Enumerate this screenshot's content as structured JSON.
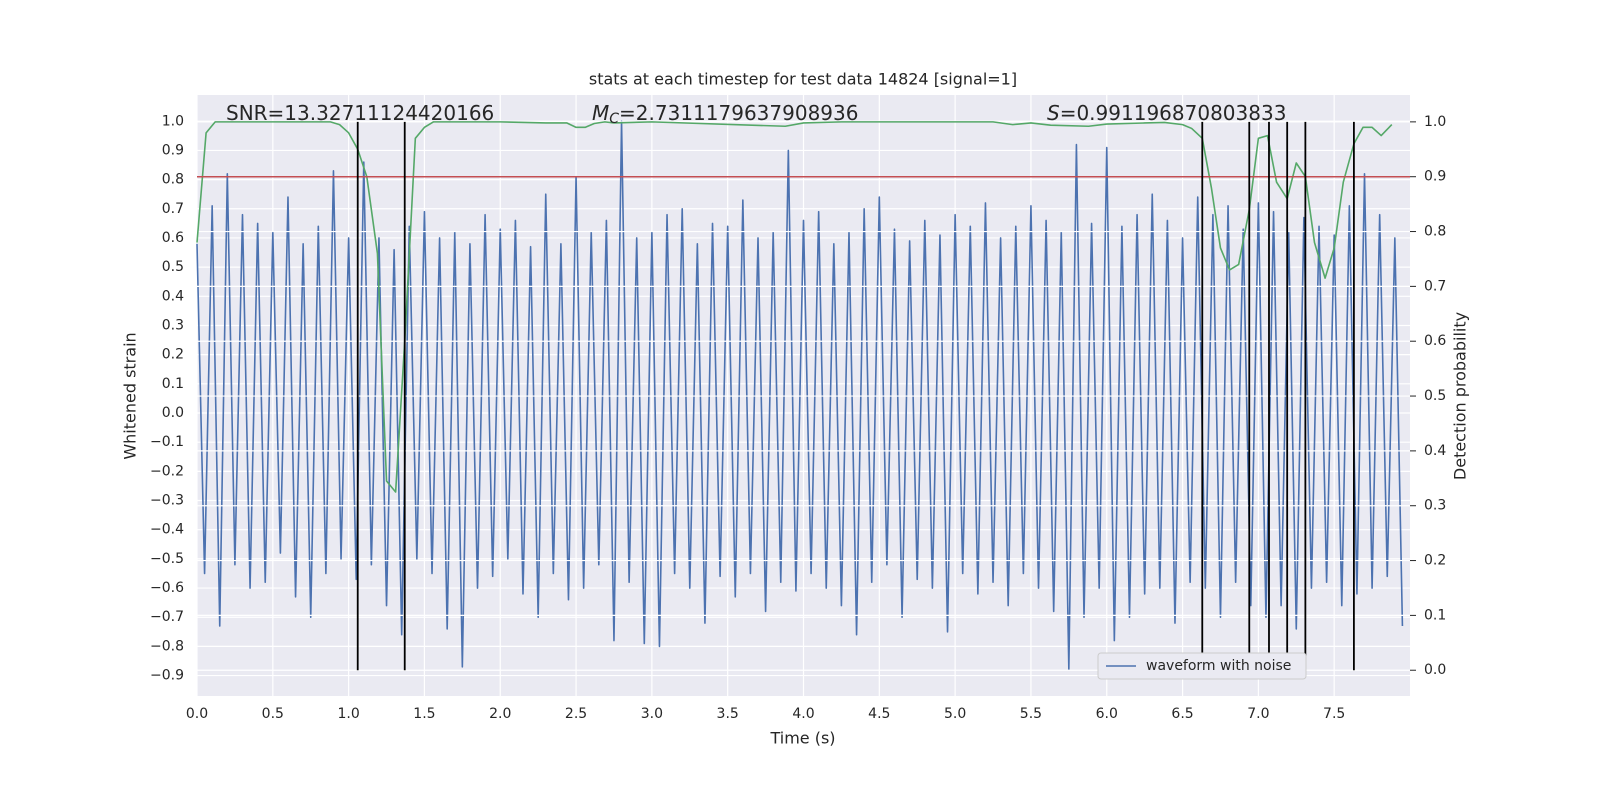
{
  "chart_data": {
    "type": "line",
    "title": "stats at each timestep for test data 14824 [signal=1]",
    "xlabel": "Time (s)",
    "ylabel": "Whitened strain",
    "y2label": "Detection probability",
    "annotations": [
      {
        "text": "SNR=13.32711124420166"
      },
      {
        "symbol": "M",
        "subscript": "C",
        "text": "=2.7311179637908936"
      },
      {
        "symbol": "S",
        "text": "=0.991196870803833"
      }
    ],
    "xlim": [
      0,
      8
    ],
    "ylim": [
      -0.97,
      1.09
    ],
    "y2lim": [
      -0.047,
      1.049
    ],
    "xticks": [
      {
        "value": 0,
        "label": "0.0"
      },
      {
        "value": 0.5,
        "label": "0.5"
      },
      {
        "value": 1,
        "label": "1.0"
      },
      {
        "value": 1.5,
        "label": "1.5"
      },
      {
        "value": 2,
        "label": "2.0"
      },
      {
        "value": 2.5,
        "label": "2.5"
      },
      {
        "value": 3,
        "label": "3.0"
      },
      {
        "value": 3.5,
        "label": "3.5"
      },
      {
        "value": 4,
        "label": "4.0"
      },
      {
        "value": 4.5,
        "label": "4.5"
      },
      {
        "value": 5,
        "label": "5.0"
      },
      {
        "value": 5.5,
        "label": "5.5"
      },
      {
        "value": 6,
        "label": "6.0"
      },
      {
        "value": 6.5,
        "label": "6.5"
      },
      {
        "value": 7,
        "label": "7.0"
      },
      {
        "value": 7.5,
        "label": "7.5"
      }
    ],
    "yticks": [
      {
        "value": 1,
        "label": "1.0"
      },
      {
        "value": 0.9,
        "label": "0.9"
      },
      {
        "value": 0.8,
        "label": "0.8"
      },
      {
        "value": 0.7,
        "label": "0.7"
      },
      {
        "value": 0.6,
        "label": "0.6"
      },
      {
        "value": 0.5,
        "label": "0.5"
      },
      {
        "value": 0.4,
        "label": "0.4"
      },
      {
        "value": 0.3,
        "label": "0.3"
      },
      {
        "value": 0.2,
        "label": "0.2"
      },
      {
        "value": 0.1,
        "label": "0.1"
      },
      {
        "value": 0,
        "label": "0.0"
      },
      {
        "value": -0.1,
        "label": "−0.1"
      },
      {
        "value": -0.2,
        "label": "−0.2"
      },
      {
        "value": -0.3,
        "label": "−0.3"
      },
      {
        "value": -0.4,
        "label": "−0.4"
      },
      {
        "value": -0.5,
        "label": "−0.5"
      },
      {
        "value": -0.6,
        "label": "−0.6"
      },
      {
        "value": -0.7,
        "label": "−0.7"
      },
      {
        "value": -0.8,
        "label": "−0.8"
      },
      {
        "value": -0.9,
        "label": "−0.9"
      }
    ],
    "y2ticks": [
      {
        "value": 0,
        "label": "0.0"
      },
      {
        "value": 0.1,
        "label": "0.1"
      },
      {
        "value": 0.2,
        "label": "0.2"
      },
      {
        "value": 0.3,
        "label": "0.3"
      },
      {
        "value": 0.4,
        "label": "0.4"
      },
      {
        "value": 0.5,
        "label": "0.5"
      },
      {
        "value": 0.6,
        "label": "0.6"
      },
      {
        "value": 0.7,
        "label": "0.7"
      },
      {
        "value": 0.8,
        "label": "0.8"
      },
      {
        "value": 0.9,
        "label": "0.9"
      },
      {
        "value": 1,
        "label": "1.0"
      }
    ],
    "grid": true,
    "legend": "lower right",
    "series": [
      {
        "name": "waveform with noise",
        "color": "#4c72b0",
        "x": [
          0,
          0.05,
          0.1,
          0.15,
          0.2,
          0.25,
          0.3,
          0.35,
          0.4,
          0.45,
          0.5,
          0.55,
          0.6,
          0.65,
          0.7,
          0.75,
          0.8,
          0.85,
          0.9,
          0.95,
          1,
          1.05,
          1.1,
          1.15,
          1.2,
          1.25,
          1.3,
          1.35,
          1.4,
          1.45,
          1.5,
          1.55,
          1.6,
          1.65,
          1.7,
          1.75,
          1.8,
          1.85,
          1.9,
          1.95,
          2,
          2.05,
          2.1,
          2.15,
          2.2,
          2.25,
          2.3,
          2.35,
          2.4,
          2.45,
          2.5,
          2.55,
          2.6,
          2.65,
          2.7,
          2.75,
          2.8,
          2.85,
          2.9,
          2.95,
          3,
          3.05,
          3.1,
          3.15,
          3.2,
          3.25,
          3.3,
          3.35,
          3.4,
          3.45,
          3.5,
          3.55,
          3.6,
          3.65,
          3.7,
          3.75,
          3.8,
          3.85,
          3.9,
          3.95,
          4,
          4.05,
          4.1,
          4.15,
          4.2,
          4.25,
          4.3,
          4.35,
          4.4,
          4.45,
          4.5,
          4.55,
          4.6,
          4.65,
          4.7,
          4.75,
          4.8,
          4.85,
          4.9,
          4.95,
          5,
          5.05,
          5.1,
          5.15,
          5.2,
          5.25,
          5.3,
          5.35,
          5.4,
          5.45,
          5.5,
          5.55,
          5.6,
          5.65,
          5.7,
          5.75,
          5.8,
          5.85,
          5.9,
          5.95,
          6,
          6.05,
          6.1,
          6.15,
          6.2,
          6.25,
          6.3,
          6.35,
          6.4,
          6.45,
          6.5,
          6.55,
          6.6,
          6.65,
          6.7,
          6.75,
          6.8,
          6.85,
          6.9,
          6.95,
          7,
          7.05,
          7.1,
          7.15,
          7.2,
          7.25,
          7.3,
          7.35,
          7.4,
          7.45,
          7.5,
          7.55,
          7.6,
          7.65,
          7.7,
          7.75,
          7.8,
          7.85,
          7.9,
          7.95
        ],
        "values": [
          0.58,
          -0.55,
          0.71,
          -0.73,
          0.82,
          -0.52,
          0.68,
          -0.6,
          0.65,
          -0.58,
          0.62,
          -0.48,
          0.74,
          -0.63,
          0.58,
          -0.7,
          0.64,
          -0.55,
          0.83,
          -0.5,
          0.6,
          -0.57,
          0.86,
          -0.52,
          0.6,
          -0.66,
          0.56,
          -0.76,
          0.64,
          -0.5,
          0.69,
          -0.55,
          0.6,
          -0.74,
          0.62,
          -0.87,
          0.58,
          -0.6,
          0.68,
          -0.56,
          0.63,
          -0.5,
          0.66,
          -0.62,
          0.57,
          -0.7,
          0.75,
          -0.55,
          0.58,
          -0.64,
          0.81,
          -0.6,
          0.62,
          -0.52,
          0.66,
          -0.78,
          1.0,
          -0.58,
          0.6,
          -0.79,
          0.62,
          -0.8,
          0.68,
          -0.55,
          0.7,
          -0.6,
          0.58,
          -0.72,
          0.65,
          -0.56,
          0.64,
          -0.63,
          0.73,
          -0.55,
          0.6,
          -0.68,
          0.62,
          -0.58,
          0.9,
          -0.61,
          0.66,
          -0.55,
          0.69,
          -0.6,
          0.58,
          -0.66,
          0.62,
          -0.76,
          0.7,
          -0.58,
          0.74,
          -0.52,
          0.63,
          -0.7,
          0.59,
          -0.57,
          0.66,
          -0.6,
          0.61,
          -0.75,
          0.68,
          -0.55,
          0.64,
          -0.62,
          0.72,
          -0.58,
          0.6,
          -0.66,
          0.64,
          -0.55,
          0.71,
          -0.6,
          0.66,
          -0.68,
          0.62,
          -0.88,
          0.92,
          -0.7,
          0.65,
          -0.6,
          0.91,
          -0.78,
          0.64,
          -0.7,
          0.68,
          -0.62,
          0.75,
          -0.6,
          0.66,
          -0.72,
          0.6,
          -0.58,
          0.74,
          -0.6,
          0.68,
          -0.7,
          0.71,
          -0.58,
          0.63,
          -0.66,
          0.72,
          -0.7,
          0.69,
          -0.66,
          0.62,
          -0.74,
          0.67,
          -0.6,
          0.64,
          -0.58,
          0.61,
          -0.66,
          0.71,
          -0.62,
          0.82,
          -0.6,
          0.68,
          -0.56,
          0.6,
          -0.73
        ]
      },
      {
        "color": "#55a868",
        "axis": "y2",
        "x": [
          0,
          0.06,
          0.12,
          0.5,
          0.88,
          0.94,
          1,
          1.06,
          1.12,
          1.19,
          1.25,
          1.31,
          1.37,
          1.44,
          1.5,
          1.56,
          2,
          2.3,
          2.44,
          2.5,
          2.56,
          2.62,
          2.69,
          2.75,
          3,
          3.88,
          4,
          4.25,
          5.25,
          5.38,
          5.5,
          5.63,
          5.88,
          6,
          6.25,
          6.38,
          6.5,
          6.56,
          6.63,
          6.69,
          6.75,
          6.81,
          6.87,
          6.94,
          7,
          7.06,
          7.12,
          7.19,
          7.25,
          7.31,
          7.37,
          7.44,
          7.5,
          7.56,
          7.63,
          7.69,
          7.75,
          7.81,
          7.88
        ],
        "values": [
          0.78,
          0.98,
          1,
          1,
          1,
          0.995,
          0.98,
          0.95,
          0.9,
          0.76,
          0.345,
          0.325,
          0.6,
          0.97,
          0.99,
          1,
          1,
          0.998,
          0.998,
          0.99,
          0.99,
          0.997,
          1,
          0.998,
          1,
          0.992,
          0.998,
          1,
          1,
          0.995,
          0.998,
          0.994,
          0.992,
          0.996,
          0.998,
          0.999,
          0.995,
          0.988,
          0.97,
          0.88,
          0.77,
          0.73,
          0.74,
          0.84,
          0.97,
          0.975,
          0.89,
          0.86,
          0.925,
          0.9,
          0.78,
          0.715,
          0.77,
          0.89,
          0.96,
          0.99,
          0.99,
          0.975,
          0.995
        ]
      }
    ],
    "hlines": [
      {
        "value": 0.9,
        "axis": "y2",
        "color": "#c44e52"
      }
    ],
    "vlines": {
      "x": [
        1.06,
        1.37,
        6.63,
        6.94,
        7.07,
        7.19,
        7.31,
        7.63
      ],
      "ymin": 0,
      "ymax": 1,
      "axis": "y2",
      "color": "#000000"
    }
  }
}
